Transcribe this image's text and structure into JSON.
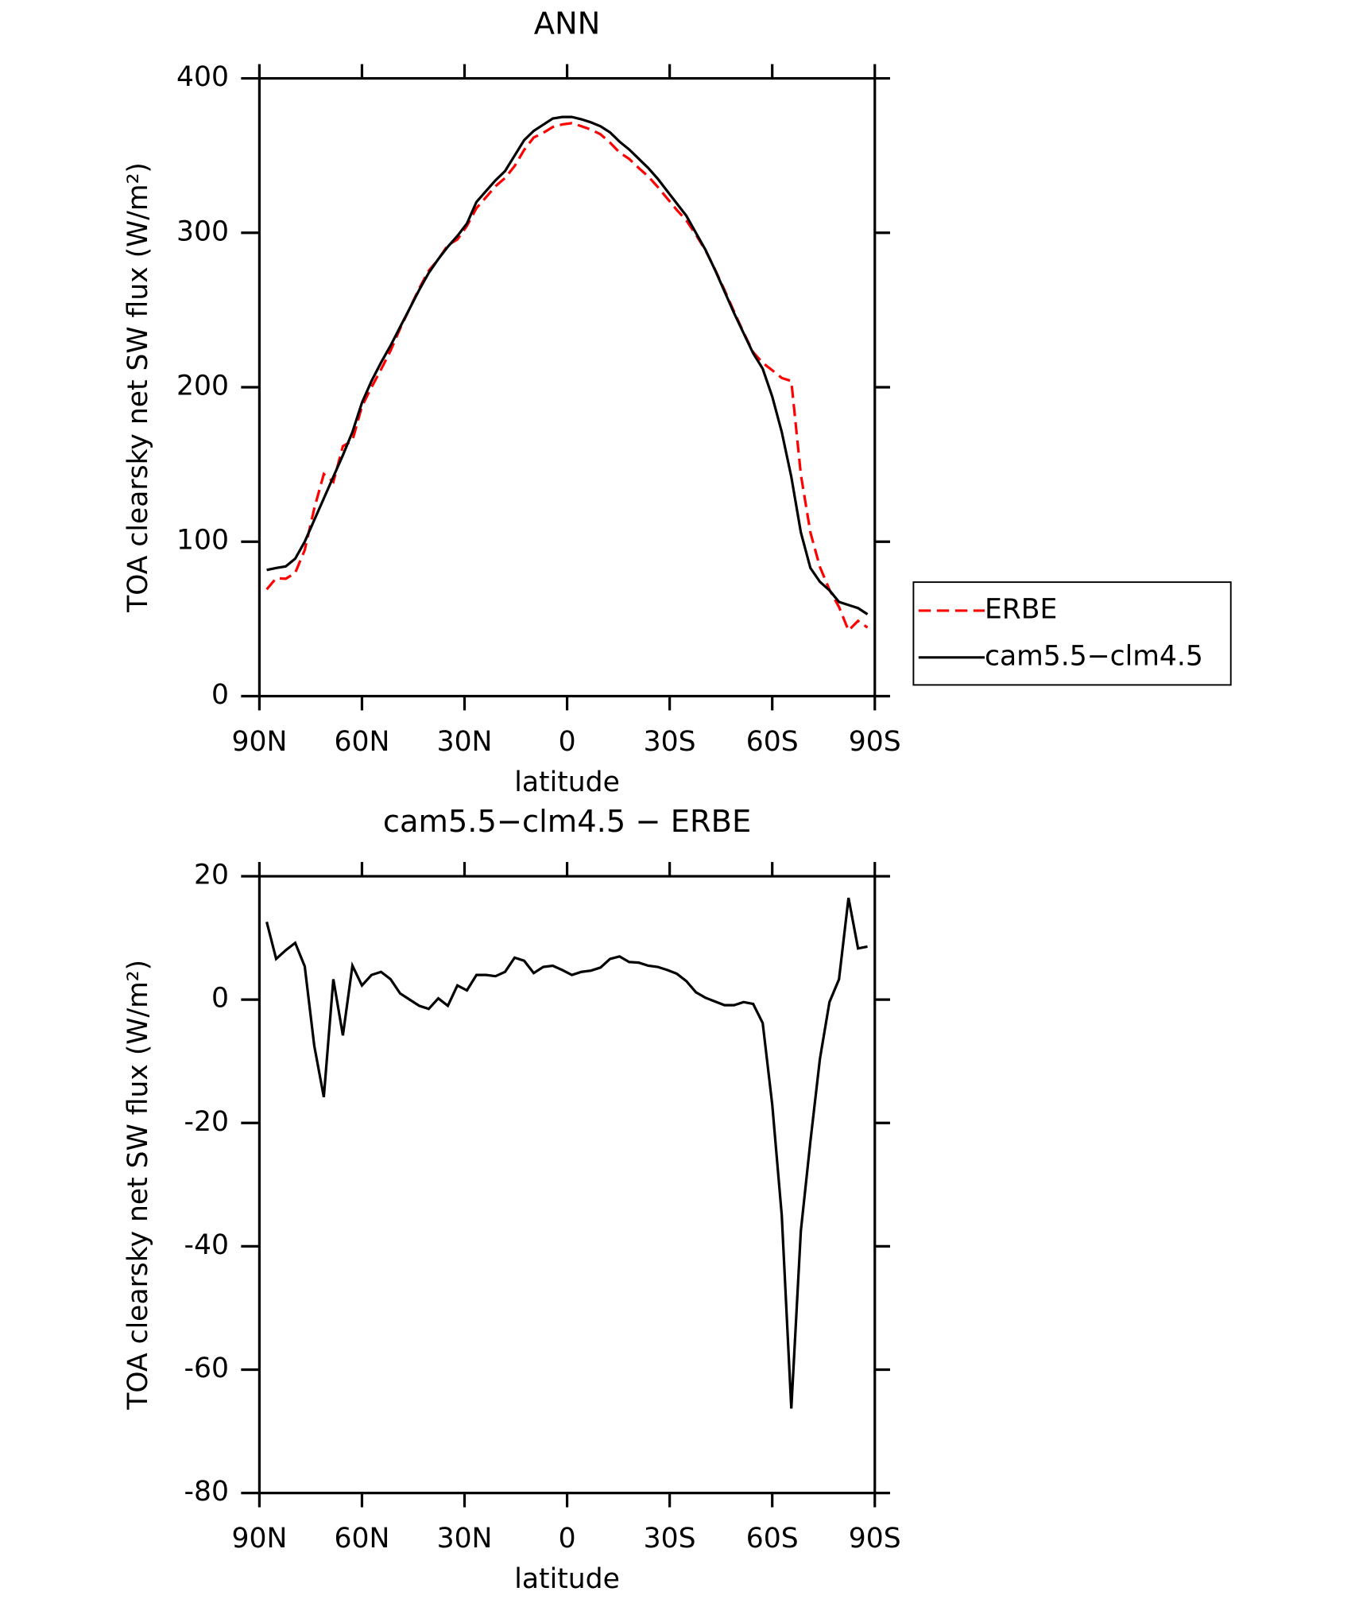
{
  "chart_data": [
    {
      "type": "line",
      "title": "ANN",
      "xlabel": "latitude",
      "ylabel": "TOA clearsky net SW flux (W/m²)",
      "x": [
        87.86,
        85.1,
        82.31,
        79.53,
        76.74,
        73.95,
        71.16,
        68.37,
        65.58,
        62.79,
        60.0,
        57.21,
        54.42,
        51.63,
        48.84,
        46.05,
        43.26,
        40.47,
        37.67,
        34.88,
        32.09,
        29.3,
        26.51,
        23.72,
        20.93,
        18.14,
        15.35,
        12.56,
        9.77,
        6.98,
        4.19,
        1.4,
        -1.4,
        -4.19,
        -6.98,
        -9.77,
        -12.56,
        -15.35,
        -18.14,
        -20.93,
        -23.72,
        -26.51,
        -29.3,
        -32.09,
        -34.88,
        -37.67,
        -40.47,
        -43.26,
        -46.05,
        -48.84,
        -51.63,
        -54.42,
        -57.21,
        -60.0,
        -62.79,
        -65.58,
        -68.37,
        -71.16,
        -73.95,
        -76.74,
        -79.53,
        -82.31,
        -85.1,
        -87.86
      ],
      "series": [
        {
          "name": "ERBE",
          "color": "#ff0000",
          "linestyle": "dashed",
          "values": [
            69.1,
            76.4,
            76.0,
            79.8,
            94.6,
            121.5,
            143.8,
            138.7,
            161.8,
            165.5,
            187.7,
            200.0,
            211.5,
            223.7,
            238.0,
            251.0,
            264.0,
            275.5,
            282.8,
            292.0,
            295.7,
            304.5,
            316.0,
            323.0,
            330.2,
            335.5,
            343.2,
            353.7,
            361.7,
            364.7,
            368.5,
            370.2,
            371.0,
            369.0,
            366.8,
            363.8,
            358.4,
            352.0,
            347.9,
            342.0,
            336.5,
            329.7,
            322.2,
            314.8,
            308.0,
            298.8,
            288.7,
            276.3,
            262.9,
            248.9,
            235.4,
            222.7,
            215.8,
            211.0,
            206.0,
            204.0,
            143.5,
            106.0,
            83.6,
            68.9,
            57.7,
            42.5,
            48.7,
            44.4
          ]
        },
        {
          "name": "cam5.5−clm4.5",
          "color": "#000000",
          "linestyle": "solid",
          "values": [
            81.7,
            83.0,
            84.0,
            89.0,
            100.0,
            114.0,
            128.0,
            142.0,
            156.0,
            171.0,
            190.0,
            204.0,
            216.0,
            227.0,
            239.0,
            251.0,
            263.0,
            274.0,
            283.0,
            291.0,
            298.0,
            306.0,
            320.0,
            327.0,
            334.0,
            340.0,
            350.0,
            360.0,
            366.0,
            370.0,
            374.0,
            375.0,
            375.0,
            373.5,
            371.5,
            369.0,
            365.0,
            359.0,
            354.0,
            348.0,
            342.0,
            335.0,
            327.0,
            319.0,
            311.0,
            300.0,
            289.0,
            276.0,
            262.0,
            248.0,
            235.0,
            222.0,
            212.0,
            194.0,
            171.0,
            142.0,
            106.0,
            83.0,
            74.0,
            68.5,
            61.0,
            59.0,
            57.0,
            53.0
          ]
        }
      ],
      "xlim": [
        90,
        -90
      ],
      "xticks": [
        {
          "value": 90,
          "label": "90N"
        },
        {
          "value": 60,
          "label": "60N"
        },
        {
          "value": 30,
          "label": "30N"
        },
        0,
        {
          "value": -30,
          "label": "30S"
        },
        {
          "value": -60,
          "label": "60S"
        },
        {
          "value": -90,
          "label": "90S"
        }
      ],
      "ylim": [
        0,
        400
      ],
      "yticks": [
        0,
        100,
        200,
        300,
        400
      ],
      "legend": "right"
    },
    {
      "type": "line",
      "title": "cam5.5−clm4.5 − ERBE",
      "xlabel": "latitude",
      "ylabel": "TOA clearsky net SW flux (W/m²)",
      "x": [
        87.86,
        85.1,
        82.31,
        79.53,
        76.74,
        73.95,
        71.16,
        68.37,
        65.58,
        62.79,
        60.0,
        57.21,
        54.42,
        51.63,
        48.84,
        46.05,
        43.26,
        40.47,
        37.67,
        34.88,
        32.09,
        29.3,
        26.51,
        23.72,
        20.93,
        18.14,
        15.35,
        12.56,
        9.77,
        6.98,
        4.19,
        1.4,
        -1.4,
        -4.19,
        -6.98,
        -9.77,
        -12.56,
        -15.35,
        -18.14,
        -20.93,
        -23.72,
        -26.51,
        -29.3,
        -32.09,
        -34.88,
        -37.67,
        -40.47,
        -43.26,
        -46.05,
        -48.84,
        -51.63,
        -54.42,
        -57.21,
        -60.0,
        -62.79,
        -65.58,
        -68.37,
        -71.16,
        -73.95,
        -76.74,
        -79.53,
        -82.31,
        -85.1,
        -87.86
      ],
      "series": [
        {
          "color": "#000000",
          "linestyle": "solid",
          "values": [
            12.6,
            6.6,
            8.0,
            9.2,
            5.4,
            -7.5,
            -15.8,
            3.3,
            -5.8,
            5.5,
            2.3,
            4.0,
            4.5,
            3.3,
            1.0,
            0.0,
            -1.0,
            -1.5,
            0.2,
            -1.0,
            2.3,
            1.5,
            4.0,
            4.0,
            3.8,
            4.5,
            6.8,
            6.3,
            4.3,
            5.3,
            5.5,
            4.8,
            4.0,
            4.5,
            4.7,
            5.2,
            6.6,
            7.0,
            6.1,
            6.0,
            5.5,
            5.3,
            4.8,
            4.2,
            3.0,
            1.2,
            0.3,
            -0.3,
            -0.9,
            -0.9,
            -0.4,
            -0.7,
            -3.8,
            -17.0,
            -35.0,
            -66.3,
            -37.5,
            -23.0,
            -9.6,
            -0.4,
            3.3,
            16.5,
            8.3,
            8.6
          ]
        }
      ],
      "xlim": [
        90,
        -90
      ],
      "xticks": [
        {
          "value": 90,
          "label": "90N"
        },
        {
          "value": 60,
          "label": "60N"
        },
        {
          "value": 30,
          "label": "30N"
        },
        0,
        {
          "value": -30,
          "label": "30S"
        },
        {
          "value": -60,
          "label": "60S"
        },
        {
          "value": -90,
          "label": "90S"
        }
      ],
      "ylim": [
        -80,
        20
      ],
      "yticks": [
        -80,
        -60,
        -40,
        -20,
        0,
        20
      ]
    }
  ]
}
